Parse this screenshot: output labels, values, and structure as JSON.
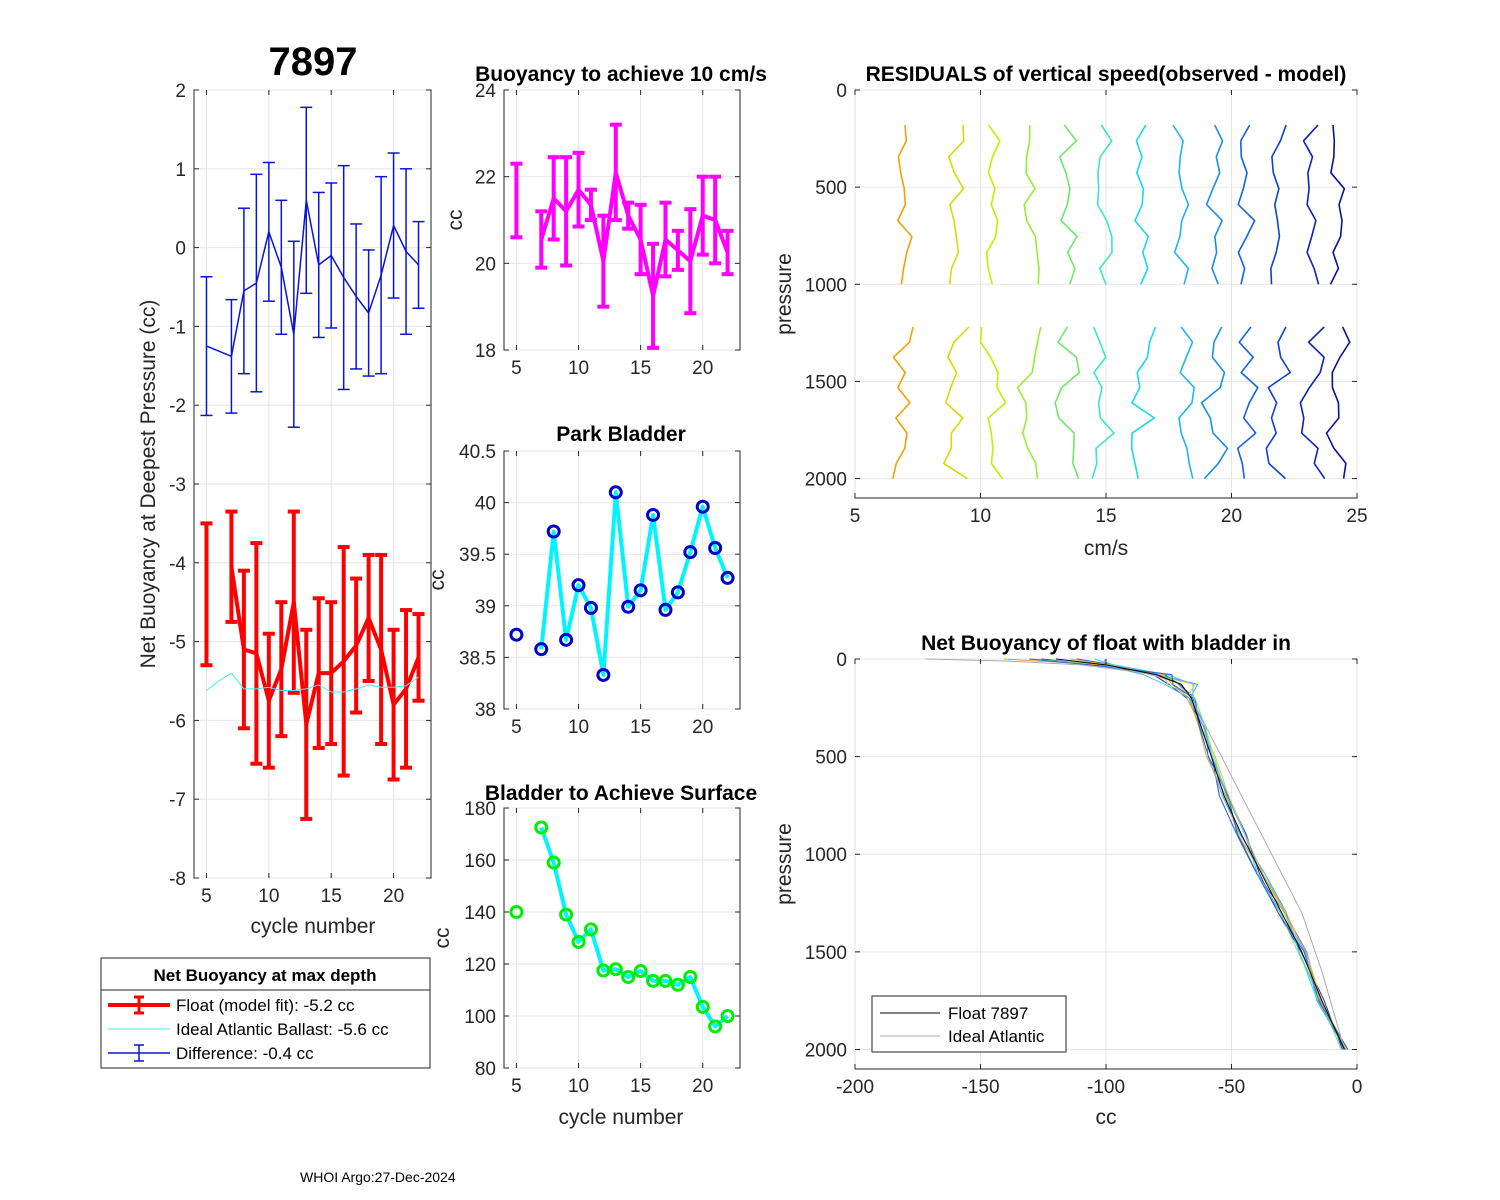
{
  "figure_id": "7897",
  "footer": "WHOI Argo:27-Dec-2024",
  "colors": {
    "float": "#ff0000",
    "ideal": "#3ff0e8",
    "diff": "#0a14d8",
    "magenta": "#ff00ff",
    "cyan": "#00f5ff",
    "park_marker": "#0000cc",
    "surf_marker": "#00ee00"
  },
  "chart_data": [
    {
      "id": "p1",
      "type": "line",
      "title": "7897",
      "xlabel": "cycle number",
      "ylabel": "Net Buoyancy at Deepest Pressure (cc)",
      "xlim": [
        4,
        23
      ],
      "ylim": [
        -8,
        2
      ],
      "xticks": [
        5,
        10,
        15,
        20
      ],
      "yticks": [
        -8,
        -7,
        -6,
        -5,
        -4,
        -3,
        -2,
        -1,
        0,
        1,
        2
      ],
      "series": [
        {
          "name": "Float (model fit)",
          "color": "#ff0000",
          "x": [
            5,
            7,
            8,
            9,
            10,
            11,
            12,
            13,
            14,
            15,
            16,
            17,
            18,
            19,
            20,
            21,
            22
          ],
          "y": [
            -4.4,
            -4.05,
            -5.1,
            -5.15,
            -5.75,
            -5.35,
            -4.5,
            -6.05,
            -5.4,
            -5.4,
            -5.25,
            -5.05,
            -4.7,
            -5.1,
            -5.8,
            -5.6,
            -5.2
          ],
          "err": [
            0.9,
            0.7,
            1.0,
            1.4,
            0.85,
            0.85,
            1.15,
            1.2,
            0.95,
            0.9,
            1.45,
            0.85,
            0.8,
            1.2,
            0.95,
            1.0,
            0.55
          ]
        },
        {
          "name": "Ideal Atlantic Ballast",
          "color": "#3ff0e8",
          "x": [
            5,
            6,
            7,
            8,
            9,
            10,
            11,
            12,
            13,
            14,
            15,
            16,
            17,
            18,
            19,
            20,
            21,
            22
          ],
          "y": [
            -5.62,
            -5.5,
            -5.4,
            -5.6,
            -5.6,
            -5.58,
            -5.62,
            -5.62,
            -5.6,
            -5.55,
            -5.64,
            -5.64,
            -5.6,
            -5.55,
            -5.58,
            -5.58,
            -5.56,
            -5.45
          ]
        },
        {
          "name": "Difference",
          "color": "#0a14d8",
          "x": [
            5,
            7,
            8,
            9,
            10,
            11,
            12,
            13,
            14,
            15,
            16,
            17,
            18,
            19,
            20,
            21,
            22
          ],
          "y": [
            -1.25,
            -1.38,
            -0.55,
            -0.45,
            0.2,
            -0.25,
            -1.1,
            0.6,
            -0.22,
            -0.1,
            -0.38,
            -0.62,
            -0.83,
            -0.35,
            0.28,
            -0.05,
            -0.22
          ],
          "err": [
            0.88,
            0.72,
            1.05,
            1.38,
            0.88,
            0.85,
            1.18,
            1.18,
            0.92,
            0.92,
            1.42,
            0.92,
            0.8,
            1.25,
            0.92,
            1.05,
            0.55
          ]
        }
      ],
      "legend": {
        "title": "Net Buoyancy at max depth",
        "entries": [
          "Float (model fit):  -5.2 cc",
          "Ideal Atlantic Ballast:  -5.6 cc",
          "Difference:  -0.4 cc"
        ]
      }
    },
    {
      "id": "p2",
      "type": "line",
      "title": "Buoyancy to achieve 10 cm/s",
      "xlabel": "",
      "ylabel": "cc",
      "xlim": [
        4,
        23
      ],
      "ylim": [
        18,
        24
      ],
      "xticks": [
        5,
        10,
        15,
        20
      ],
      "yticks": [
        18,
        20,
        22,
        24
      ],
      "series": [
        {
          "name": "buoyancy",
          "color": "#ff00ff",
          "x": [
            5,
            7,
            8,
            9,
            10,
            11,
            12,
            13,
            14,
            15,
            16,
            17,
            18,
            19,
            20,
            21,
            22
          ],
          "y": [
            21.45,
            20.55,
            21.5,
            21.2,
            21.7,
            21.35,
            20.05,
            22.1,
            21.1,
            20.55,
            19.25,
            20.55,
            20.3,
            20.05,
            21.1,
            21.0,
            20.25
          ],
          "err": [
            0.85,
            0.65,
            0.95,
            1.25,
            0.85,
            0.35,
            1.05,
            1.1,
            0.3,
            0.8,
            1.2,
            0.85,
            0.45,
            1.2,
            0.9,
            1.0,
            0.5
          ]
        }
      ]
    },
    {
      "id": "p3",
      "type": "line",
      "title": "Park Bladder",
      "xlabel": "",
      "ylabel": "cc",
      "xlim": [
        4,
        23
      ],
      "ylim": [
        38,
        40.5
      ],
      "xticks": [
        5,
        10,
        15,
        20
      ],
      "yticks": [
        38,
        38.5,
        39,
        39.5,
        40,
        40.5
      ],
      "series": [
        {
          "name": "park bladder",
          "color": "#00f5ff",
          "x": [
            5,
            7,
            8,
            9,
            10,
            11,
            12,
            13,
            14,
            15,
            16,
            17,
            18,
            19,
            20,
            21,
            22
          ],
          "y": [
            38.72,
            38.58,
            39.72,
            38.67,
            39.2,
            38.98,
            38.33,
            40.1,
            38.99,
            39.15,
            39.88,
            38.96,
            39.13,
            39.52,
            39.96,
            39.56,
            39.27
          ]
        }
      ]
    },
    {
      "id": "p4",
      "type": "line",
      "title": "Bladder to Achieve Surface",
      "xlabel": "cycle number",
      "ylabel": "cc",
      "xlim": [
        4,
        23
      ],
      "ylim": [
        80,
        180
      ],
      "xticks": [
        5,
        10,
        15,
        20
      ],
      "yticks": [
        80,
        100,
        120,
        140,
        160,
        180
      ],
      "series": [
        {
          "name": "surface bladder",
          "color": "#00f5ff",
          "x": [
            5,
            7,
            8,
            9,
            10,
            11,
            12,
            13,
            14,
            15,
            16,
            17,
            18,
            19,
            20,
            21,
            22
          ],
          "y": [
            140,
            172.5,
            159,
            139,
            128.5,
            133.3,
            117.5,
            118,
            115,
            117.3,
            113.5,
            113.5,
            112,
            115,
            103.5,
            96,
            100
          ]
        }
      ]
    },
    {
      "id": "p5",
      "type": "line",
      "title": "RESIDUALS of vertical speed(observed - model)",
      "xlabel": "cm/s",
      "ylabel": "pressure",
      "xlim": [
        5,
        25
      ],
      "ylim": [
        0,
        2100
      ],
      "y_reversed": true,
      "xticks": [
        5,
        10,
        15,
        20,
        25
      ],
      "yticks": [
        0,
        500,
        1000,
        1500,
        2000
      ],
      "series_offsets_cm_s": [
        7,
        9,
        10.5,
        12,
        13.5,
        15,
        16.5,
        18,
        19.3,
        20.6,
        21.9,
        23.2,
        24.2
      ]
    },
    {
      "id": "p6",
      "type": "line",
      "title": "Net Buoyancy of float with bladder in",
      "xlabel": "cc",
      "ylabel": "pressure",
      "xlim": [
        -200,
        0
      ],
      "ylim": [
        0,
        2100
      ],
      "y_reversed": true,
      "xticks": [
        -200,
        -150,
        -100,
        -50,
        0
      ],
      "yticks": [
        0,
        500,
        1000,
        1500,
        2000
      ],
      "series": [
        {
          "name": "Float 7897",
          "color": "#000000",
          "x": [
            -120,
            -100,
            -80,
            -70,
            -66,
            -62,
            -58,
            -53,
            -46,
            -38,
            -30,
            -22,
            -14,
            -5
          ],
          "y": [
            0,
            30,
            80,
            130,
            200,
            350,
            500,
            700,
            900,
            1100,
            1300,
            1500,
            1750,
            2000
          ]
        },
        {
          "name": "Ideal Atlantic",
          "color": "#aaaaaa",
          "x": [
            -172,
            -140,
            -110,
            -85,
            -72,
            -66,
            -60,
            -54,
            -46,
            -38,
            -30,
            -22,
            -14,
            -5
          ],
          "y": [
            0,
            10,
            30,
            70,
            120,
            200,
            350,
            500,
            700,
            900,
            1100,
            1300,
            1600,
            2000
          ]
        }
      ],
      "legend": {
        "entries": [
          "Float 7897",
          "Ideal Atlantic"
        ]
      }
    }
  ]
}
